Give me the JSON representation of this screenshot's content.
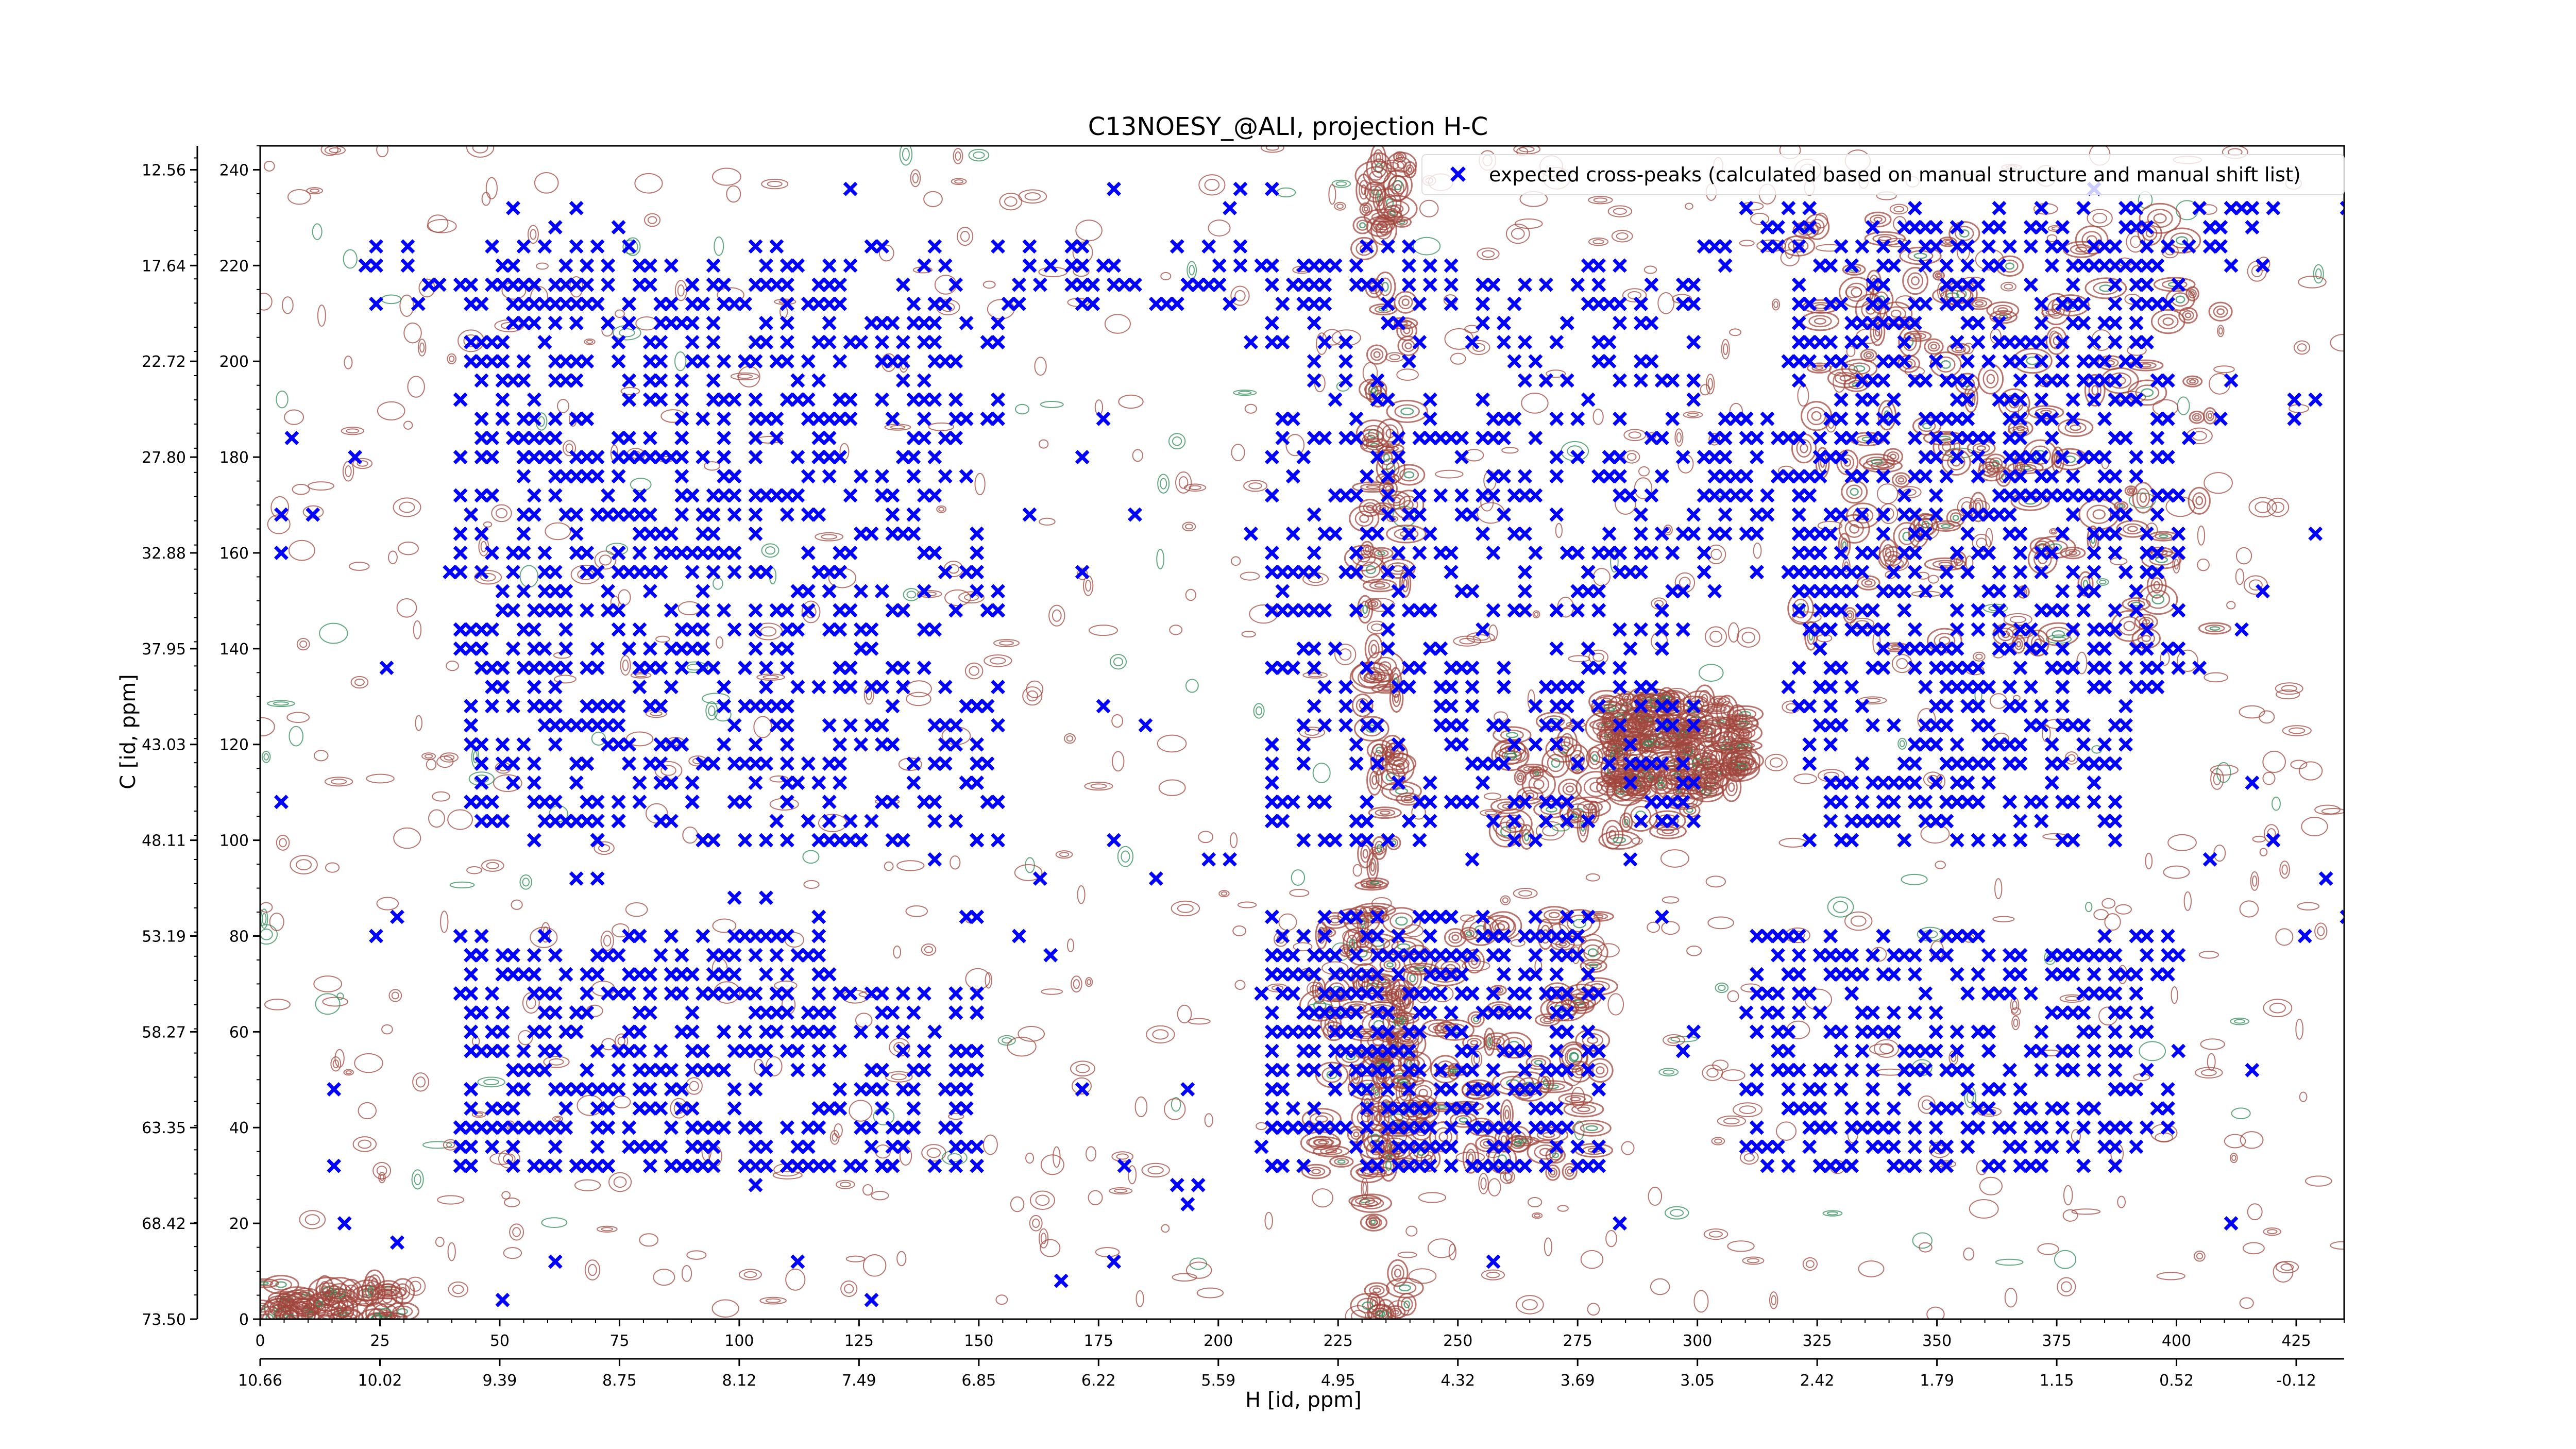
{
  "chart_data": {
    "type": "scatter",
    "title": "C13NOESY_@ALI, projection H-C",
    "xlabel": "H [id, ppm]",
    "ylabel": "C [id, ppm]",
    "xlim": [
      0,
      435
    ],
    "ylim": [
      0,
      245
    ],
    "x_ticks": [
      0,
      25,
      50,
      75,
      100,
      125,
      150,
      175,
      200,
      225,
      250,
      275,
      300,
      325,
      350,
      375,
      400,
      425
    ],
    "x_tick_labels": [
      "0",
      "25",
      "50",
      "75",
      "100",
      "125",
      "150",
      "175",
      "200",
      "225",
      "250",
      "275",
      "300",
      "325",
      "350",
      "375",
      "400",
      "425"
    ],
    "y_ticks": [
      0,
      20,
      40,
      60,
      80,
      100,
      120,
      140,
      160,
      180,
      200,
      220,
      240
    ],
    "y_tick_labels": [
      "0",
      "20",
      "40",
      "60",
      "80",
      "100",
      "120",
      "140",
      "160",
      "180",
      "200",
      "220",
      "240"
    ],
    "ppm_x_labels": [
      "10.66",
      "10.02",
      "9.39",
      "8.75",
      "8.12",
      "7.49",
      "6.85",
      "6.22",
      "5.59",
      "4.95",
      "4.32",
      "3.69",
      "3.05",
      "2.42",
      "1.79",
      "1.15",
      "0.52",
      "-0.12"
    ],
    "ppm_y_labels": [
      "73.50",
      "68.42",
      "63.35",
      "58.27",
      "53.19",
      "48.11",
      "43.03",
      "37.95",
      "32.88",
      "27.80",
      "22.72",
      "17.64",
      "12.56"
    ],
    "legend": {
      "position": "top-right",
      "entry": "expected cross-peaks (calculated based on manual structure and manual shift list)"
    },
    "series": [
      {
        "name": "expected cross-peaks (calculated based on manual structure and manual shift list)",
        "color": "#0000ff",
        "marker": "x",
        "clusters": [
          {
            "x": [
              42,
              120
            ],
            "y": [
              30,
              80
            ],
            "n": 320
          },
          {
            "x": [
              120,
              150
            ],
            "y": [
              30,
              70
            ],
            "n": 90
          },
          {
            "x": [
              42,
              125
            ],
            "y": [
              100,
              220
            ],
            "n": 620
          },
          {
            "x": [
              125,
              155
            ],
            "y": [
              100,
              210
            ],
            "n": 140
          },
          {
            "x": [
              210,
              280
            ],
            "y": [
              30,
              85
            ],
            "n": 380
          },
          {
            "x": [
              210,
              300
            ],
            "y": [
              100,
              220
            ],
            "n": 440
          },
          {
            "x": [
              320,
              400
            ],
            "y": [
              130,
              220
            ],
            "n": 560
          },
          {
            "x": [
              310,
              400
            ],
            "y": [
              30,
              80
            ],
            "n": 330
          },
          {
            "x": [
              320,
              390
            ],
            "y": [
              100,
              130
            ],
            "n": 160
          },
          {
            "x": [
              300,
              330
            ],
            "y": [
              150,
              190
            ],
            "n": 70
          },
          {
            "x": [
              20,
              240
            ],
            "y": [
              210,
              225
            ],
            "n": 120
          },
          {
            "x": [
              300,
              420
            ],
            "y": [
              220,
              232
            ],
            "n": 80
          },
          {
            "x": [
              0,
              435
            ],
            "y": [
              5,
              240
            ],
            "n": 200
          }
        ]
      },
      {
        "name": "",
        "color": "#a0463c",
        "marker": "contour-positive"
      },
      {
        "name": "",
        "color": "#2e8b57",
        "marker": "contour-negative"
      }
    ],
    "contour_regions": [
      {
        "x": [
          230,
          240
        ],
        "y": [
          0,
          245
        ],
        "level": "high"
      },
      {
        "x": [
          220,
          280
        ],
        "y": [
          30,
          85
        ],
        "level": "high"
      },
      {
        "x": [
          320,
          410
        ],
        "y": [
          140,
          230
        ],
        "level": "high"
      },
      {
        "x": [
          280,
          310
        ],
        "y": [
          110,
          130
        ],
        "level": "high"
      },
      {
        "x": [
          260,
          300
        ],
        "y": [
          100,
          125
        ],
        "level": "medium"
      },
      {
        "x": [
          0,
          30
        ],
        "y": [
          0,
          8
        ],
        "level": "medium"
      }
    ],
    "grid": false
  }
}
